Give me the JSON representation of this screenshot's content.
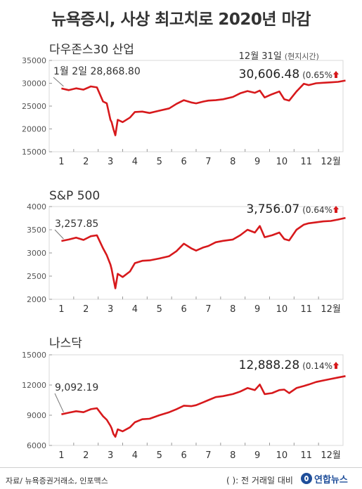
{
  "title": "뉴욕증시, 사상 최고치로 2020년 마감",
  "colors": {
    "line": "#d7191c",
    "text": "#333333",
    "axis": "#555555",
    "logo": "#1f4e9a"
  },
  "chart_data": [
    {
      "type": "line",
      "title": "다우존스30 산업",
      "categories": [
        "1",
        "2",
        "3",
        "4",
        "5",
        "6",
        "7",
        "8",
        "9",
        "10",
        "11",
        "12월"
      ],
      "ylim": [
        15000,
        35000
      ],
      "yticks": [
        35000,
        30000,
        25000,
        20000,
        15000
      ],
      "series": [
        {
          "x": [
            1.0,
            1.3,
            1.6,
            1.9,
            2.2,
            2.45,
            2.7,
            2.85,
            3.0,
            3.05,
            3.12,
            3.2,
            3.3,
            3.5,
            3.8,
            4.0,
            4.3,
            4.6,
            5.0,
            5.4,
            5.7,
            6.0,
            6.3,
            6.5,
            6.8,
            7.0,
            7.3,
            7.6,
            8.0,
            8.3,
            8.6,
            8.9,
            9.1,
            9.3,
            9.6,
            9.9,
            10.1,
            10.3,
            10.6,
            10.9,
            11.1,
            11.4,
            11.7,
            12.0,
            12.3,
            12.6
          ],
          "y": [
            28868.8,
            28500,
            28900,
            28600,
            29300,
            29100,
            26000,
            25600,
            22000,
            21500,
            20000,
            18600,
            22000,
            21500,
            22500,
            23700,
            23800,
            23500,
            24000,
            24500,
            25500,
            26300,
            25800,
            25600,
            26000,
            26200,
            26300,
            26500,
            27000,
            27800,
            28300,
            27900,
            28400,
            26900,
            27600,
            28200,
            26500,
            26200,
            28200,
            29900,
            29600,
            30000,
            30100,
            30200,
            30300,
            30606.48
          ]
        }
      ],
      "annotations": {
        "start_label": "1월 2일 28,868.80",
        "end_date": "12월 31일",
        "end_date_note": "(현지시간)",
        "end_value": "30,606.48",
        "end_change": "(0.65%"
      }
    },
    {
      "type": "line",
      "title": "S&P 500",
      "categories": [
        "1",
        "2",
        "3",
        "4",
        "5",
        "6",
        "7",
        "8",
        "9",
        "10",
        "11",
        "12월"
      ],
      "ylim": [
        2000,
        4000
      ],
      "yticks": [
        4000,
        3500,
        3000,
        2500,
        2000
      ],
      "series": [
        {
          "x": [
            1.0,
            1.3,
            1.6,
            1.9,
            2.2,
            2.45,
            2.7,
            2.85,
            3.0,
            3.05,
            3.12,
            3.2,
            3.3,
            3.5,
            3.8,
            4.0,
            4.3,
            4.6,
            5.0,
            5.4,
            5.7,
            6.0,
            6.3,
            6.5,
            6.8,
            7.0,
            7.3,
            7.6,
            8.0,
            8.3,
            8.6,
            8.9,
            9.1,
            9.3,
            9.6,
            9.9,
            10.1,
            10.3,
            10.6,
            10.9,
            11.1,
            11.4,
            11.7,
            12.0,
            12.3,
            12.6
          ],
          "y": [
            3257.85,
            3290,
            3330,
            3280,
            3360,
            3380,
            3100,
            2950,
            2750,
            2650,
            2450,
            2237,
            2550,
            2480,
            2600,
            2780,
            2830,
            2840,
            2880,
            2930,
            3040,
            3200,
            3100,
            3050,
            3120,
            3150,
            3230,
            3260,
            3290,
            3380,
            3500,
            3440,
            3580,
            3340,
            3380,
            3440,
            3300,
            3270,
            3500,
            3610,
            3640,
            3660,
            3680,
            3690,
            3720,
            3756.07
          ]
        }
      ],
      "annotations": {
        "start_label": "3,257.85",
        "end_value": "3,756.07",
        "end_change": "(0.64%"
      }
    },
    {
      "type": "line",
      "title": "나스닥",
      "categories": [
        "1",
        "2",
        "3",
        "4",
        "5",
        "6",
        "7",
        "8",
        "9",
        "10",
        "11",
        "12월"
      ],
      "ylim": [
        6000,
        15000
      ],
      "yticks": [
        15000,
        12000,
        9000,
        6000
      ],
      "series": [
        {
          "x": [
            1.0,
            1.3,
            1.6,
            1.9,
            2.2,
            2.45,
            2.7,
            2.85,
            3.0,
            3.05,
            3.12,
            3.2,
            3.3,
            3.5,
            3.8,
            4.0,
            4.3,
            4.6,
            5.0,
            5.4,
            5.7,
            6.0,
            6.3,
            6.5,
            6.8,
            7.0,
            7.3,
            7.6,
            8.0,
            8.3,
            8.6,
            8.9,
            9.1,
            9.3,
            9.6,
            9.9,
            10.1,
            10.3,
            10.6,
            10.9,
            11.1,
            11.4,
            11.7,
            12.0,
            12.3,
            12.6
          ],
          "y": [
            9092.19,
            9250,
            9400,
            9300,
            9600,
            9700,
            8900,
            8550,
            7950,
            7700,
            7150,
            6860,
            7600,
            7400,
            7800,
            8300,
            8600,
            8650,
            9000,
            9300,
            9600,
            9950,
            9900,
            10000,
            10300,
            10500,
            10800,
            10900,
            11100,
            11350,
            11700,
            11500,
            12050,
            11100,
            11200,
            11500,
            11550,
            11200,
            11700,
            11900,
            12050,
            12300,
            12450,
            12600,
            12750,
            12888.28
          ]
        }
      ],
      "annotations": {
        "start_label": "9,092.19",
        "end_value": "12,888.28",
        "end_change": "(0.14%"
      }
    }
  ],
  "footer": {
    "source": "자료/ 뉴욕증권거래소, 인포맥스",
    "note": "(   ): 전 거래일 대비",
    "logo": "연합뉴스"
  }
}
